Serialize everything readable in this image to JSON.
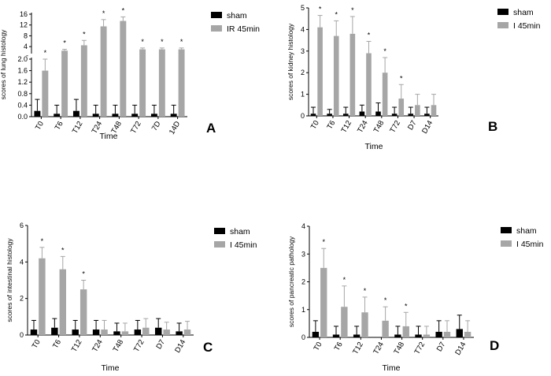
{
  "colors": {
    "sham": "#000000",
    "treatment": "#a6a6a6",
    "axis": "#000000"
  },
  "chart_data": [
    {
      "type": "bar",
      "panel": "A",
      "ylabel": "scores of lung histology",
      "xlabel": "Time",
      "categories": [
        "T0",
        "T6",
        "T12",
        "T24",
        "T48",
        "T72",
        "7D",
        "14D"
      ],
      "ylim": [
        0,
        16
      ],
      "axis_break": true,
      "yticks_lower": [
        "0.0",
        "0.4",
        "0.8",
        "1.2",
        "1.6",
        "2.0"
      ],
      "yticks_upper": [
        "4",
        "8",
        "12",
        "16"
      ],
      "yticks_mid": [
        "-"
      ],
      "legend_position": "right",
      "series": [
        {
          "name": "sham",
          "values": [
            0.2,
            0.1,
            0.2,
            0.1,
            0.1,
            0.1,
            0.1,
            0.1
          ],
          "errors": [
            0.4,
            0.3,
            0.4,
            0.3,
            0.3,
            0.3,
            0.3,
            0.3
          ]
        },
        {
          "name": "IR 45min",
          "values": [
            1.6,
            2.5,
            4.5,
            11.5,
            13.5,
            3,
            3,
            3
          ],
          "errors": [
            0.4,
            0.5,
            1.8,
            2.5,
            1.5,
            0.5,
            0.5,
            0.5
          ]
        }
      ],
      "significance": [
        "*",
        "*",
        "*",
        "*",
        "*",
        "*",
        "*",
        "*"
      ]
    },
    {
      "type": "bar",
      "panel": "B",
      "ylabel": "scores of kidney histology",
      "xlabel": "Time",
      "categories": [
        "T0",
        "T6",
        "T12",
        "T24",
        "T48",
        "T72",
        "D7",
        "D14"
      ],
      "ylim": [
        0,
        5
      ],
      "yticks": [
        "0",
        "1",
        "2",
        "3",
        "4",
        "5"
      ],
      "legend_position": "right",
      "series": [
        {
          "name": "sham",
          "values": [
            0.1,
            0.1,
            0.1,
            0.2,
            0.2,
            0.1,
            0.1,
            0.1
          ],
          "errors": [
            0.3,
            0.2,
            0.3,
            0.3,
            0.4,
            0.3,
            0.3,
            0.3
          ]
        },
        {
          "name": "I 45min",
          "values": [
            4.1,
            3.7,
            3.8,
            2.9,
            2.0,
            0.8,
            0.5,
            0.5
          ],
          "errors": [
            0.55,
            0.7,
            0.8,
            0.55,
            0.7,
            0.65,
            0.5,
            0.5
          ]
        }
      ],
      "significance": [
        "*",
        "*",
        "*",
        "*",
        "*",
        "*",
        "",
        ""
      ]
    },
    {
      "type": "bar",
      "panel": "C",
      "ylabel": "scores of intestinal histology",
      "xlabel": "Time",
      "categories": [
        "T0",
        "T6",
        "T12",
        "T24",
        "T48",
        "T72",
        "D7",
        "D14"
      ],
      "ylim": [
        0,
        6
      ],
      "yticks": [
        "0",
        "2",
        "4",
        "6"
      ],
      "legend_position": "right",
      "series": [
        {
          "name": "sham",
          "values": [
            0.3,
            0.4,
            0.3,
            0.3,
            0.2,
            0.3,
            0.4,
            0.2
          ],
          "errors": [
            0.5,
            0.5,
            0.5,
            0.5,
            0.45,
            0.5,
            0.5,
            0.45
          ]
        },
        {
          "name": "I 45min",
          "values": [
            4.2,
            3.6,
            2.5,
            0.3,
            0.2,
            0.4,
            0.3,
            0.3
          ],
          "errors": [
            0.6,
            0.7,
            0.5,
            0.5,
            0.45,
            0.5,
            0.4,
            0.45
          ]
        }
      ],
      "significance": [
        "*",
        "*",
        "*",
        "",
        "",
        "",
        "",
        ""
      ]
    },
    {
      "type": "bar",
      "panel": "D",
      "ylabel": "scores of pancreatic pathology",
      "xlabel": "Time",
      "categories": [
        "T0",
        "T6",
        "T12",
        "T24",
        "T48",
        "T72",
        "D7",
        "D14"
      ],
      "ylim": [
        0,
        4
      ],
      "yticks": [
        "0",
        "1",
        "2",
        "3",
        "4"
      ],
      "legend_position": "right",
      "series": [
        {
          "name": "sham",
          "values": [
            0.2,
            0.1,
            0.1,
            0.0,
            0.1,
            0.1,
            0.2,
            0.3
          ],
          "errors": [
            0.4,
            0.3,
            0.3,
            0.0,
            0.3,
            0.3,
            0.4,
            0.5
          ]
        },
        {
          "name": "I 45min",
          "values": [
            2.5,
            1.1,
            0.9,
            0.6,
            0.4,
            0.1,
            0.2,
            0.2
          ],
          "errors": [
            0.7,
            0.75,
            0.55,
            0.5,
            0.5,
            0.3,
            0.4,
            0.4
          ]
        }
      ],
      "significance": [
        "*",
        "*",
        "*",
        "*",
        "*",
        "",
        "",
        ""
      ]
    }
  ]
}
